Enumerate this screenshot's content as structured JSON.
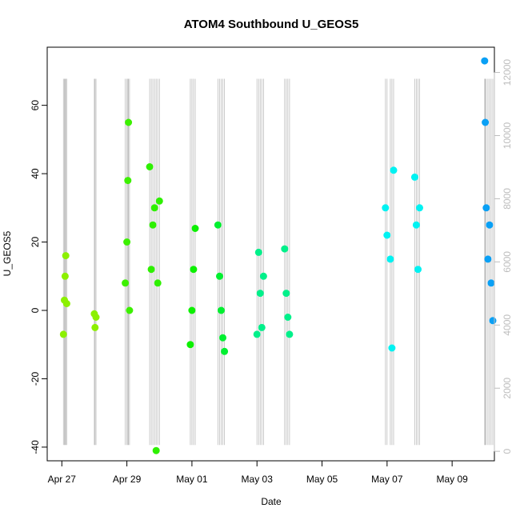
{
  "chart_data": {
    "type": "scatter",
    "title": "ATOM4 Southbound U_GEOS5",
    "xlabel": "Date",
    "ylabel": "U_GEOS5",
    "x_ticks": [
      "Apr 27",
      "Apr 29",
      "May 01",
      "May 03",
      "May 05",
      "May 07",
      "May 09"
    ],
    "x_tick_days": [
      0,
      2,
      4,
      6,
      8,
      10,
      12
    ],
    "xlim_days": [
      -0.45,
      13.3
    ],
    "ylim": [
      -44,
      77
    ],
    "y_ticks": [
      "-40",
      "-20",
      "0",
      "20",
      "40",
      "60"
    ],
    "y_tick_values": [
      -40,
      -20,
      0,
      20,
      40,
      60
    ],
    "right_axis": {
      "series": "altitude",
      "color": "#bdbdbd",
      "ylim": [
        -300,
        12800
      ],
      "ticks": [
        "0",
        "2000",
        "4000",
        "6000",
        "8000",
        "10000",
        "12000"
      ],
      "tick_values": [
        0,
        2000,
        4000,
        6000,
        8000,
        10000,
        12000
      ]
    },
    "grid": false,
    "series": [
      {
        "color": "#8cf000",
        "points": [
          [
            0.05,
            -7
          ],
          [
            0.08,
            3
          ],
          [
            0.1,
            10
          ],
          [
            0.12,
            16
          ],
          [
            0.15,
            2
          ]
        ]
      },
      {
        "color": "#8cf000",
        "points": [
          [
            1.0,
            -1
          ],
          [
            1.02,
            -5
          ],
          [
            1.05,
            -2
          ]
        ]
      },
      {
        "color": "#3cf000",
        "points": [
          [
            1.95,
            8
          ],
          [
            2.0,
            20
          ],
          [
            2.03,
            38
          ],
          [
            2.05,
            55
          ],
          [
            2.08,
            0
          ]
        ]
      },
      {
        "color": "#2ef000",
        "points": [
          [
            2.7,
            42
          ],
          [
            2.75,
            12
          ],
          [
            2.8,
            25
          ],
          [
            2.85,
            30
          ],
          [
            2.9,
            -41
          ],
          [
            2.95,
            8
          ],
          [
            3.0,
            32
          ]
        ]
      },
      {
        "color": "#0cf000",
        "points": [
          [
            3.95,
            -10
          ],
          [
            4.0,
            0
          ],
          [
            4.05,
            12
          ],
          [
            4.1,
            24
          ]
        ]
      },
      {
        "color": "#00f030",
        "points": [
          [
            4.8,
            25
          ],
          [
            4.85,
            10
          ],
          [
            4.9,
            0
          ],
          [
            4.95,
            -8
          ],
          [
            5.0,
            -12
          ]
        ]
      },
      {
        "color": "#00f08a",
        "points": [
          [
            6.0,
            -7
          ],
          [
            6.05,
            17
          ],
          [
            6.1,
            5
          ],
          [
            6.15,
            -5
          ],
          [
            6.2,
            10
          ]
        ]
      },
      {
        "color": "#00f08a",
        "points": [
          [
            6.85,
            18
          ],
          [
            6.9,
            5
          ],
          [
            6.95,
            -2
          ],
          [
            7.0,
            -7
          ]
        ]
      },
      {
        "color": "#00f2f2",
        "points": [
          [
            9.95,
            30
          ],
          [
            10.0,
            22
          ],
          [
            10.1,
            15
          ],
          [
            10.15,
            -11
          ],
          [
            10.2,
            41
          ]
        ]
      },
      {
        "color": "#00f2f2",
        "points": [
          [
            10.85,
            39
          ],
          [
            10.9,
            25
          ],
          [
            10.95,
            12
          ],
          [
            11.0,
            30
          ]
        ]
      },
      {
        "color": "#0aa0f5",
        "points": [
          [
            13.0,
            73
          ],
          [
            13.02,
            55
          ],
          [
            13.05,
            30
          ],
          [
            13.1,
            15
          ],
          [
            13.15,
            25
          ],
          [
            13.2,
            8
          ],
          [
            13.25,
            -3
          ]
        ]
      }
    ]
  }
}
